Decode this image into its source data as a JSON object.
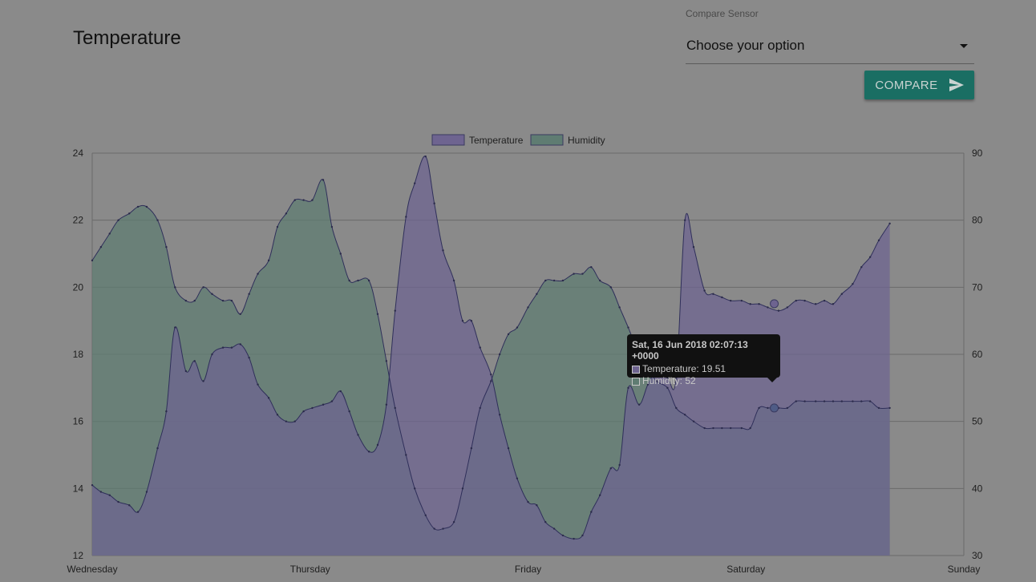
{
  "page": {
    "title": "Temperature"
  },
  "compare": {
    "label": "Compare Sensor",
    "selected": "Choose your option",
    "button_label": "COMPARE",
    "button_color": "#1a6e63"
  },
  "tooltip": {
    "title": "Sat, 16 Jun 2018 02:07:13 +0000",
    "rows": [
      {
        "text": "Temperature: 19.51",
        "color": "#6e6490"
      },
      {
        "text": "Humidity: 52",
        "color": "#5f7c72"
      }
    ]
  },
  "chart_data": {
    "type": "area",
    "x_ticks": [
      "Wednesday",
      "Thursday",
      "Friday",
      "Saturday",
      "Sunday"
    ],
    "xlim": [
      0,
      4
    ],
    "grid": true,
    "legend_position": "top-center",
    "left_axis": {
      "ylim": [
        12,
        24
      ],
      "ticks": [
        24,
        22,
        20,
        18,
        16,
        14,
        12
      ]
    },
    "right_axis": {
      "ylim": [
        30,
        90
      ],
      "ticks": [
        90,
        80,
        70,
        60,
        50,
        40,
        30
      ]
    },
    "series": [
      {
        "name": "Temperature",
        "axis": "left",
        "color": "#6e6490",
        "points": [
          [
            0.0,
            14.1
          ],
          [
            0.04,
            13.9
          ],
          [
            0.08,
            13.8
          ],
          [
            0.12,
            13.6
          ],
          [
            0.17,
            13.5
          ],
          [
            0.21,
            13.3
          ],
          [
            0.25,
            13.9
          ],
          [
            0.3,
            15.2
          ],
          [
            0.34,
            16.3
          ],
          [
            0.38,
            18.8
          ],
          [
            0.43,
            17.5
          ],
          [
            0.47,
            17.8
          ],
          [
            0.51,
            17.2
          ],
          [
            0.55,
            18.0
          ],
          [
            0.6,
            18.2
          ],
          [
            0.64,
            18.2
          ],
          [
            0.68,
            18.3
          ],
          [
            0.72,
            17.9
          ],
          [
            0.76,
            17.1
          ],
          [
            0.81,
            16.7
          ],
          [
            0.85,
            16.2
          ],
          [
            0.89,
            16.0
          ],
          [
            0.93,
            16.0
          ],
          [
            0.97,
            16.3
          ],
          [
            1.01,
            16.4
          ],
          [
            1.06,
            16.5
          ],
          [
            1.1,
            16.6
          ],
          [
            1.14,
            16.9
          ],
          [
            1.18,
            16.3
          ],
          [
            1.22,
            15.6
          ],
          [
            1.27,
            15.1
          ],
          [
            1.31,
            15.3
          ],
          [
            1.35,
            16.5
          ],
          [
            1.39,
            19.3
          ],
          [
            1.44,
            22.1
          ],
          [
            1.48,
            23.1
          ],
          [
            1.53,
            23.9
          ],
          [
            1.57,
            22.5
          ],
          [
            1.61,
            21.1
          ],
          [
            1.66,
            20.2
          ],
          [
            1.7,
            19.0
          ],
          [
            1.74,
            19.0
          ],
          [
            1.78,
            18.2
          ],
          [
            1.83,
            17.4
          ],
          [
            1.87,
            16.2
          ],
          [
            1.91,
            15.2
          ],
          [
            1.95,
            14.3
          ],
          [
            2.0,
            13.6
          ],
          [
            2.04,
            13.5
          ],
          [
            2.08,
            13.0
          ],
          [
            2.12,
            12.8
          ],
          [
            2.16,
            12.6
          ],
          [
            2.21,
            12.5
          ],
          [
            2.25,
            12.6
          ],
          [
            2.29,
            13.3
          ],
          [
            2.33,
            13.8
          ],
          [
            2.38,
            14.6
          ],
          [
            2.42,
            14.7
          ],
          [
            2.46,
            17.0
          ],
          [
            2.51,
            16.5
          ],
          [
            2.55,
            17.1
          ],
          [
            2.59,
            17.5
          ],
          [
            2.64,
            17.3
          ],
          [
            2.68,
            17.3
          ],
          [
            2.72,
            22.0
          ],
          [
            2.76,
            21.2
          ],
          [
            2.81,
            19.9
          ],
          [
            2.85,
            19.8
          ],
          [
            2.89,
            19.7
          ],
          [
            2.93,
            19.6
          ],
          [
            2.98,
            19.6
          ],
          [
            3.02,
            19.5
          ],
          [
            3.06,
            19.5
          ],
          [
            3.1,
            19.4
          ],
          [
            3.15,
            19.3
          ],
          [
            3.19,
            19.4
          ],
          [
            3.23,
            19.6
          ],
          [
            3.27,
            19.6
          ],
          [
            3.32,
            19.5
          ],
          [
            3.36,
            19.6
          ],
          [
            3.4,
            19.5
          ],
          [
            3.44,
            19.8
          ],
          [
            3.49,
            20.1
          ],
          [
            3.53,
            20.6
          ],
          [
            3.57,
            20.9
          ],
          [
            3.61,
            21.4
          ],
          [
            3.66,
            21.9
          ]
        ]
      },
      {
        "name": "Humidity",
        "axis": "right",
        "color": "#5f7c72",
        "points": [
          [
            0.0,
            74
          ],
          [
            0.04,
            76
          ],
          [
            0.08,
            78
          ],
          [
            0.12,
            80
          ],
          [
            0.17,
            81
          ],
          [
            0.21,
            82
          ],
          [
            0.25,
            82
          ],
          [
            0.3,
            80
          ],
          [
            0.34,
            76
          ],
          [
            0.38,
            70
          ],
          [
            0.43,
            68
          ],
          [
            0.47,
            68
          ],
          [
            0.51,
            70
          ],
          [
            0.55,
            69
          ],
          [
            0.6,
            68
          ],
          [
            0.64,
            68
          ],
          [
            0.68,
            66
          ],
          [
            0.72,
            69
          ],
          [
            0.76,
            72
          ],
          [
            0.81,
            74
          ],
          [
            0.85,
            79
          ],
          [
            0.89,
            81
          ],
          [
            0.93,
            83
          ],
          [
            0.97,
            83
          ],
          [
            1.01,
            83
          ],
          [
            1.06,
            86
          ],
          [
            1.1,
            79
          ],
          [
            1.14,
            75
          ],
          [
            1.18,
            71
          ],
          [
            1.22,
            71
          ],
          [
            1.27,
            71
          ],
          [
            1.31,
            66
          ],
          [
            1.35,
            59
          ],
          [
            1.39,
            52
          ],
          [
            1.44,
            45
          ],
          [
            1.48,
            40
          ],
          [
            1.53,
            36
          ],
          [
            1.57,
            34
          ],
          [
            1.61,
            34
          ],
          [
            1.66,
            35
          ],
          [
            1.7,
            40
          ],
          [
            1.74,
            46
          ],
          [
            1.78,
            52
          ],
          [
            1.83,
            56
          ],
          [
            1.87,
            60
          ],
          [
            1.91,
            63
          ],
          [
            1.95,
            64
          ],
          [
            2.0,
            67
          ],
          [
            2.04,
            69
          ],
          [
            2.08,
            71
          ],
          [
            2.12,
            71
          ],
          [
            2.16,
            71
          ],
          [
            2.21,
            72
          ],
          [
            2.25,
            72
          ],
          [
            2.29,
            73
          ],
          [
            2.33,
            71
          ],
          [
            2.38,
            70
          ],
          [
            2.42,
            67
          ],
          [
            2.46,
            64
          ],
          [
            2.51,
            60
          ],
          [
            2.55,
            58
          ],
          [
            2.59,
            56
          ],
          [
            2.64,
            55
          ],
          [
            2.68,
            52
          ],
          [
            2.72,
            51
          ],
          [
            2.76,
            50
          ],
          [
            2.81,
            49
          ],
          [
            2.85,
            49
          ],
          [
            2.89,
            49
          ],
          [
            2.93,
            49
          ],
          [
            2.98,
            49
          ],
          [
            3.02,
            49
          ],
          [
            3.06,
            52
          ],
          [
            3.1,
            52
          ],
          [
            3.15,
            52
          ],
          [
            3.19,
            52
          ],
          [
            3.23,
            53
          ],
          [
            3.27,
            53
          ],
          [
            3.32,
            53
          ],
          [
            3.36,
            53
          ],
          [
            3.4,
            53
          ],
          [
            3.44,
            53
          ],
          [
            3.49,
            53
          ],
          [
            3.53,
            53
          ],
          [
            3.57,
            53
          ],
          [
            3.61,
            52
          ],
          [
            3.66,
            52
          ]
        ]
      }
    ]
  }
}
